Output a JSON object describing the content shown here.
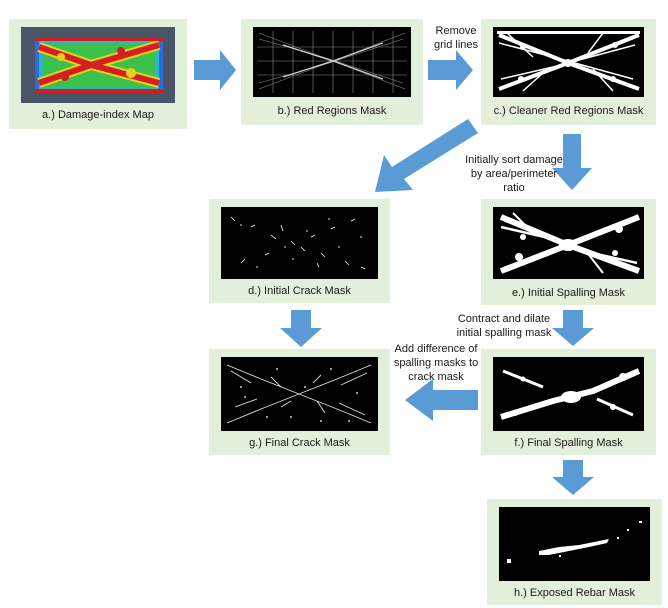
{
  "panels": {
    "a": {
      "caption": "a.) Damage-index Map"
    },
    "b": {
      "caption": "b.) Red Regions Mask"
    },
    "c": {
      "caption": "c.) Cleaner Red Regions Mask"
    },
    "d": {
      "caption": "d.) Initial Crack Mask"
    },
    "e": {
      "caption": "e.) Initial Spalling Mask"
    },
    "f": {
      "caption": "f.) Final Spalling Mask"
    },
    "g": {
      "caption": "g.) Final Crack Mask"
    },
    "h": {
      "caption": "h.) Exposed Rebar Mask"
    }
  },
  "notes": {
    "remove_grid": [
      "Remove",
      "grid lines"
    ],
    "sort_damage": [
      "Initially sort damage",
      "by area/perimeter",
      "ratio"
    ],
    "contract_dilate": [
      "Contract and dilate",
      "initial spalling mask"
    ],
    "add_difference": [
      "Add difference of",
      "spalling masks to",
      "crack mask"
    ]
  },
  "colors": {
    "panel_bg": "#e2efda",
    "arrow": "#5b9bd5",
    "mask_bg": "#000000"
  }
}
